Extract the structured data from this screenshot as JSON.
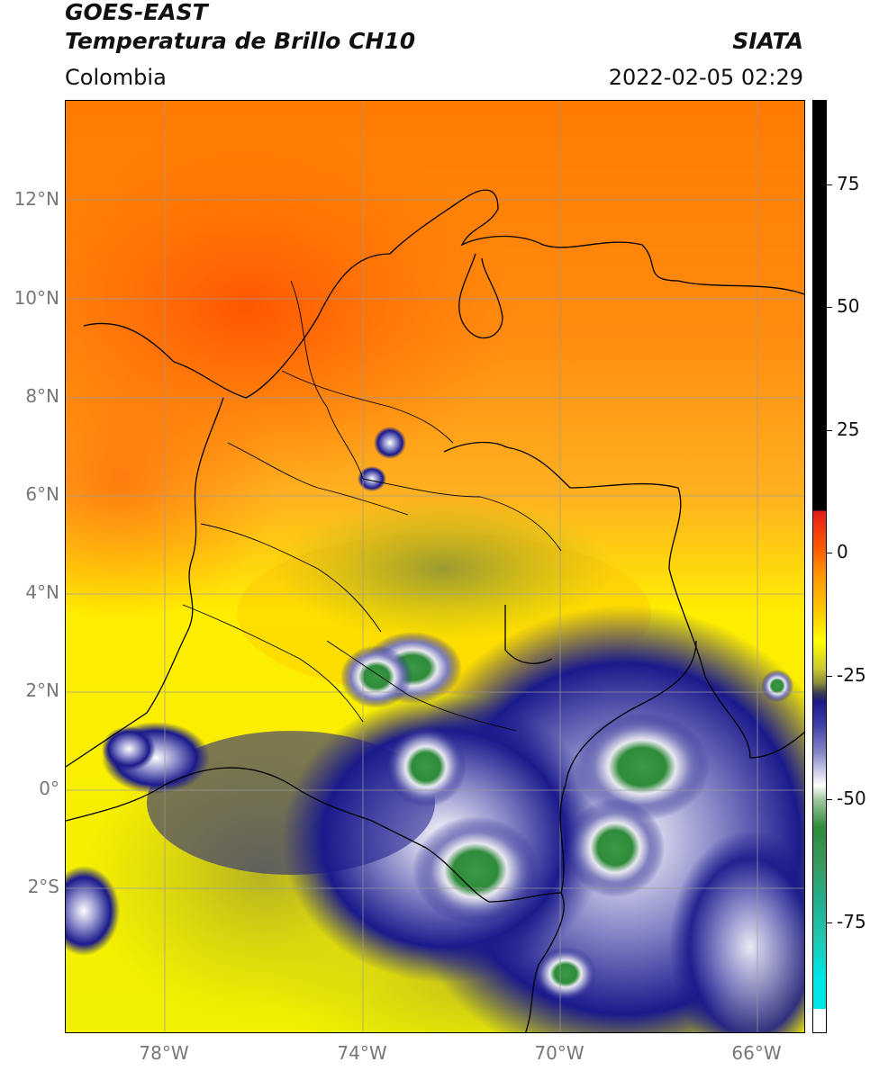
{
  "header": {
    "title_line1": "GOES-EAST",
    "title_line2": "Temperatura de Brillo CH10",
    "source": "SIATA",
    "region": "Colombia",
    "timestamp": "2022-02-05 02:29"
  },
  "map": {
    "lat_ticks": [
      "12°N",
      "10°N",
      "8°N",
      "6°N",
      "4°N",
      "2°N",
      "0°",
      "2°S"
    ],
    "lon_ticks": [
      "78°W",
      "74°W",
      "70°W",
      "66°W"
    ],
    "gridlines": true
  },
  "colorbar": {
    "ticks": [
      "75",
      "50",
      "25",
      "0",
      "-25",
      "-50",
      "-75"
    ],
    "colors": {
      "black": "#000000",
      "red": "#e31a1c",
      "orange": "#ff8c00",
      "yellow": "#ffff00",
      "olive": "#a9a92a",
      "navy": "#1a1a8c",
      "white": "#ffffff",
      "green": "#2e8b3a",
      "teal": "#20b090",
      "cyan": "#00e5e5"
    }
  }
}
